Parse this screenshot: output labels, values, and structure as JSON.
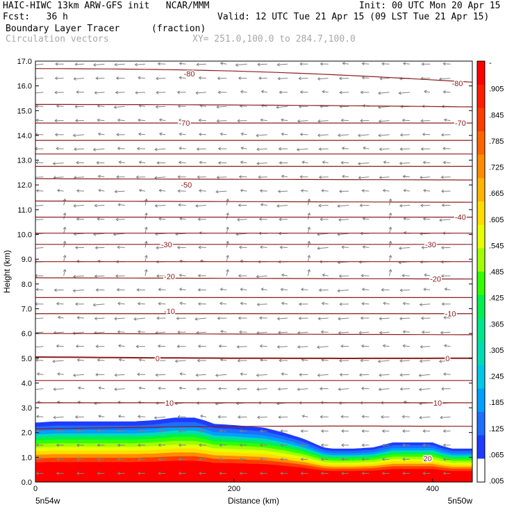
{
  "header": {
    "line1_left": "HAIC-HIWC 13km ARW-GFS init   NCAR/MMM",
    "line1_right": "Init: 00 UTC Mon 20 Apr 15",
    "fcst": "Fcst:   36 h",
    "valid": "Valid: 12 UTC Tue 21 Apr 15 (09 LST Tue 21 Apr 15)",
    "field": "Boundary Layer Tracer",
    "units": "(fraction)",
    "vectors": "Circulation vectors",
    "xy": "XY= 251.0,100.0 to 284.7,100.0"
  },
  "axes": {
    "ylabel": "Height (km)",
    "xlabel": "Distance (km)",
    "x_left_label": "5n54w",
    "x_right_label": "5n50w"
  },
  "colors": {
    "contour": "#8b1a1a",
    "vector": "#808080",
    "palette": [
      "#ffffff",
      "#1e3cff",
      "#1e6eff",
      "#00a0ff",
      "#00c8e6",
      "#00dcb4",
      "#00e68c",
      "#00f050",
      "#32ff00",
      "#a0ff00",
      "#e6ff00",
      "#ffdc00",
      "#ffb400",
      "#ff8c00",
      "#ff6400",
      "#ff3c00",
      "#ff1e00",
      "#ff0000"
    ]
  },
  "chart_data": {
    "type": "heatmap",
    "title": "Boundary Layer Tracer",
    "xlabel": "Distance (km)",
    "ylabel": "Height (km)",
    "xlim": [
      0,
      440
    ],
    "ylim": [
      0,
      17
    ],
    "yticks": [
      "0.0",
      "1.0",
      "2.0",
      "3.0",
      "4.0",
      "5.0",
      "6.0",
      "7.0",
      "8.0",
      "9.0",
      "10.0",
      "11.0",
      "12.0",
      "13.0",
      "14.0",
      "15.0",
      "16.0",
      "17.0"
    ],
    "xticks": [
      {
        "value": 0,
        "label": "0"
      },
      {
        "value": 200,
        "label": "200"
      },
      {
        "value": 400,
        "label": "400"
      }
    ],
    "colorbar_labels": [
      "-",
      ".905",
      ".845",
      ".785",
      ".725",
      ".665",
      ".605",
      ".545",
      ".485",
      ".425",
      ".365",
      ".305",
      ".245",
      ".185",
      ".125",
      ".065",
      ".005"
    ],
    "bl_top_km": {
      "x": [
        0,
        20,
        60,
        100,
        120,
        140,
        160,
        170,
        180,
        200,
        230,
        250,
        270,
        290,
        300,
        320,
        340,
        350,
        360,
        380,
        400,
        410,
        420,
        440
      ],
      "y": [
        2.4,
        2.45,
        2.45,
        2.45,
        2.5,
        2.6,
        2.6,
        2.5,
        2.35,
        2.3,
        2.2,
        2.0,
        1.75,
        1.4,
        1.35,
        1.35,
        1.4,
        1.5,
        1.6,
        1.6,
        1.6,
        1.45,
        1.35,
        1.35
      ]
    },
    "contour_labels": [
      {
        "text": "-80",
        "x": 155,
        "y": 16.5
      },
      {
        "text": "-80",
        "x": 425,
        "y": 16.1
      },
      {
        "text": "-70",
        "x": 150,
        "y": 14.5
      },
      {
        "text": "-70",
        "x": 428,
        "y": 14.5
      },
      {
        "text": "-50",
        "x": 152,
        "y": 12.0
      },
      {
        "text": "-40",
        "x": 428,
        "y": 10.7
      },
      {
        "text": "-30",
        "x": 132,
        "y": 9.6
      },
      {
        "text": "-30",
        "x": 398,
        "y": 9.6
      },
      {
        "text": "-20",
        "x": 135,
        "y": 8.3
      },
      {
        "text": "-20",
        "x": 403,
        "y": 8.2
      },
      {
        "text": "-10",
        "x": 135,
        "y": 6.9
      },
      {
        "text": "-10",
        "x": 418,
        "y": 6.8
      },
      {
        "text": "0",
        "x": 123,
        "y": 5.0
      },
      {
        "text": "0",
        "x": 415,
        "y": 5.0
      },
      {
        "text": "10",
        "x": 135,
        "y": 3.2
      },
      {
        "text": "10",
        "x": 405,
        "y": 3.2
      },
      {
        "text": "20",
        "x": 395,
        "y": 0.95
      }
    ],
    "contour_levels_km": [
      {
        "y0": 16.7,
        "y1": 16.15,
        "bend": 0.3
      },
      {
        "y0": 15.25,
        "y1": 15.15,
        "bend": 0.05
      },
      {
        "y0": 14.5,
        "y1": 14.5,
        "bend": 0.0
      },
      {
        "y0": 13.8,
        "y1": 13.8,
        "bend": 0.0
      },
      {
        "y0": 13.25,
        "y1": 13.25,
        "bend": 0.0
      },
      {
        "y0": 12.75,
        "y1": 12.75,
        "bend": 0.0
      },
      {
        "y0": 12.25,
        "y1": 12.2,
        "bend": 0.0
      },
      {
        "y0": 11.35,
        "y1": 11.3,
        "bend": 0.0
      },
      {
        "y0": 10.7,
        "y1": 10.7,
        "bend": 0.0
      },
      {
        "y0": 10.05,
        "y1": 10.05,
        "bend": 0.0
      },
      {
        "y0": 9.6,
        "y1": 9.6,
        "bend": 0.0
      },
      {
        "y0": 8.9,
        "y1": 8.9,
        "bend": 0.0
      },
      {
        "y0": 8.25,
        "y1": 8.2,
        "bend": 0.0
      },
      {
        "y0": 7.45,
        "y1": 7.45,
        "bend": 0.0
      },
      {
        "y0": 6.8,
        "y1": 6.8,
        "bend": 0.0
      },
      {
        "y0": 6.0,
        "y1": 5.95,
        "bend": 0.0
      },
      {
        "y0": 5.05,
        "y1": 5.0,
        "bend": -0.05
      },
      {
        "y0": 4.1,
        "y1": 4.1,
        "bend": 0.0
      },
      {
        "y0": 3.2,
        "y1": 3.2,
        "bend": 0.0
      },
      {
        "y0": 2.15,
        "y1": 2.25,
        "bend": 0.1
      }
    ]
  }
}
